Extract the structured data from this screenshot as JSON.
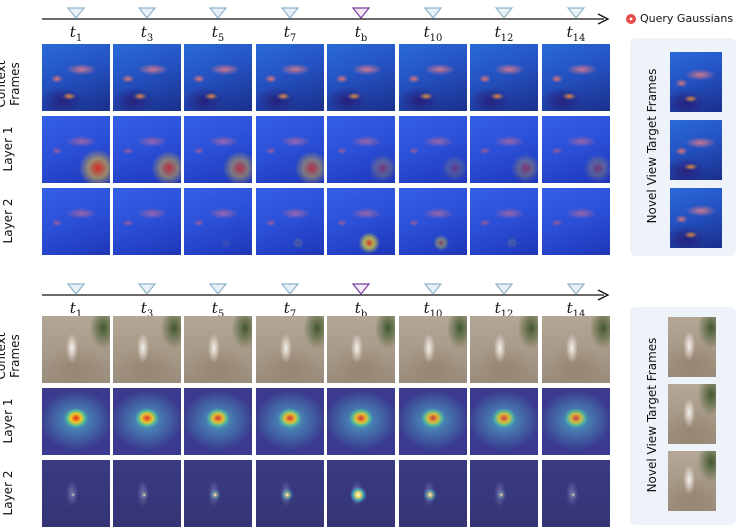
{
  "legend": {
    "label": "Query Gaussians",
    "color": "#e94b4b"
  },
  "timesteps": [
    {
      "base": "t",
      "sub": "1",
      "highlight": false
    },
    {
      "base": "t",
      "sub": "3",
      "highlight": false
    },
    {
      "base": "t",
      "sub": "5",
      "highlight": false
    },
    {
      "base": "t",
      "sub": "7",
      "highlight": false
    },
    {
      "base": "t",
      "sub": "b",
      "highlight": true
    },
    {
      "base": "t",
      "sub": "10",
      "highlight": false
    },
    {
      "base": "t",
      "sub": "12",
      "highlight": false
    },
    {
      "base": "t",
      "sub": "14",
      "highlight": false
    }
  ],
  "row_labels": {
    "context_line1": "Context",
    "context_line2": "Frames",
    "layer1": "Layer 1",
    "layer2": "Layer 2"
  },
  "side_panel_label": "Novel View Target Frames",
  "colors": {
    "triangle_normal": "#8fb3c9",
    "triangle_highlight": "#7b3fa0",
    "panel_bg": "#eef2f9"
  },
  "heat_intensity": {
    "fish_layer1": [
      0.9,
      0.75,
      0.7,
      0.7,
      0.4,
      0.3,
      0.45,
      0.4
    ],
    "fish_layer2": [
      0.0,
      0.0,
      0.1,
      0.2,
      0.85,
      0.5,
      0.2,
      0.0
    ],
    "cat_layer1": [
      1.0,
      0.95,
      0.9,
      0.9,
      0.9,
      0.85,
      0.85,
      0.8
    ],
    "cat_layer2": [
      0.15,
      0.25,
      0.4,
      0.55,
      0.9,
      0.6,
      0.3,
      0.2
    ]
  }
}
